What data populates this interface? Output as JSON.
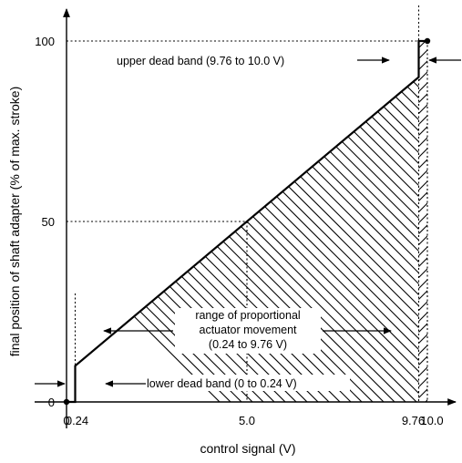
{
  "chart_data": {
    "type": "line",
    "xlabel": "control signal (V)",
    "ylabel": "final position of shaft adapter (% of max. stroke)",
    "xlim": [
      0,
      10.0
    ],
    "ylim": [
      0,
      100
    ],
    "x_ticks": [
      "0",
      "0.24",
      "5.0",
      "9.76",
      "10.0"
    ],
    "x_tick_values": [
      0,
      0.24,
      5.0,
      9.76,
      10.0
    ],
    "y_ticks": [
      "0",
      "50",
      "100"
    ],
    "y_tick_values": [
      0,
      50,
      100
    ],
    "series": [
      {
        "points": [
          [
            0,
            0
          ],
          [
            0.24,
            0
          ],
          [
            0.24,
            10
          ],
          [
            9.76,
            90
          ],
          [
            9.76,
            100
          ],
          [
            10.0,
            100
          ]
        ]
      }
    ],
    "annotations": {
      "upper_dead_band": "upper dead band (9.76 to 10.0 V)",
      "lower_dead_band": "lower dead band (0 to 0.24 V)",
      "proportional_range": [
        "range of proportional",
        "actuator movement",
        "(0.24 to 9.76 V)"
      ]
    },
    "colors": {
      "line": "#000000",
      "hatch": "#000000",
      "background": "#ffffff"
    }
  }
}
